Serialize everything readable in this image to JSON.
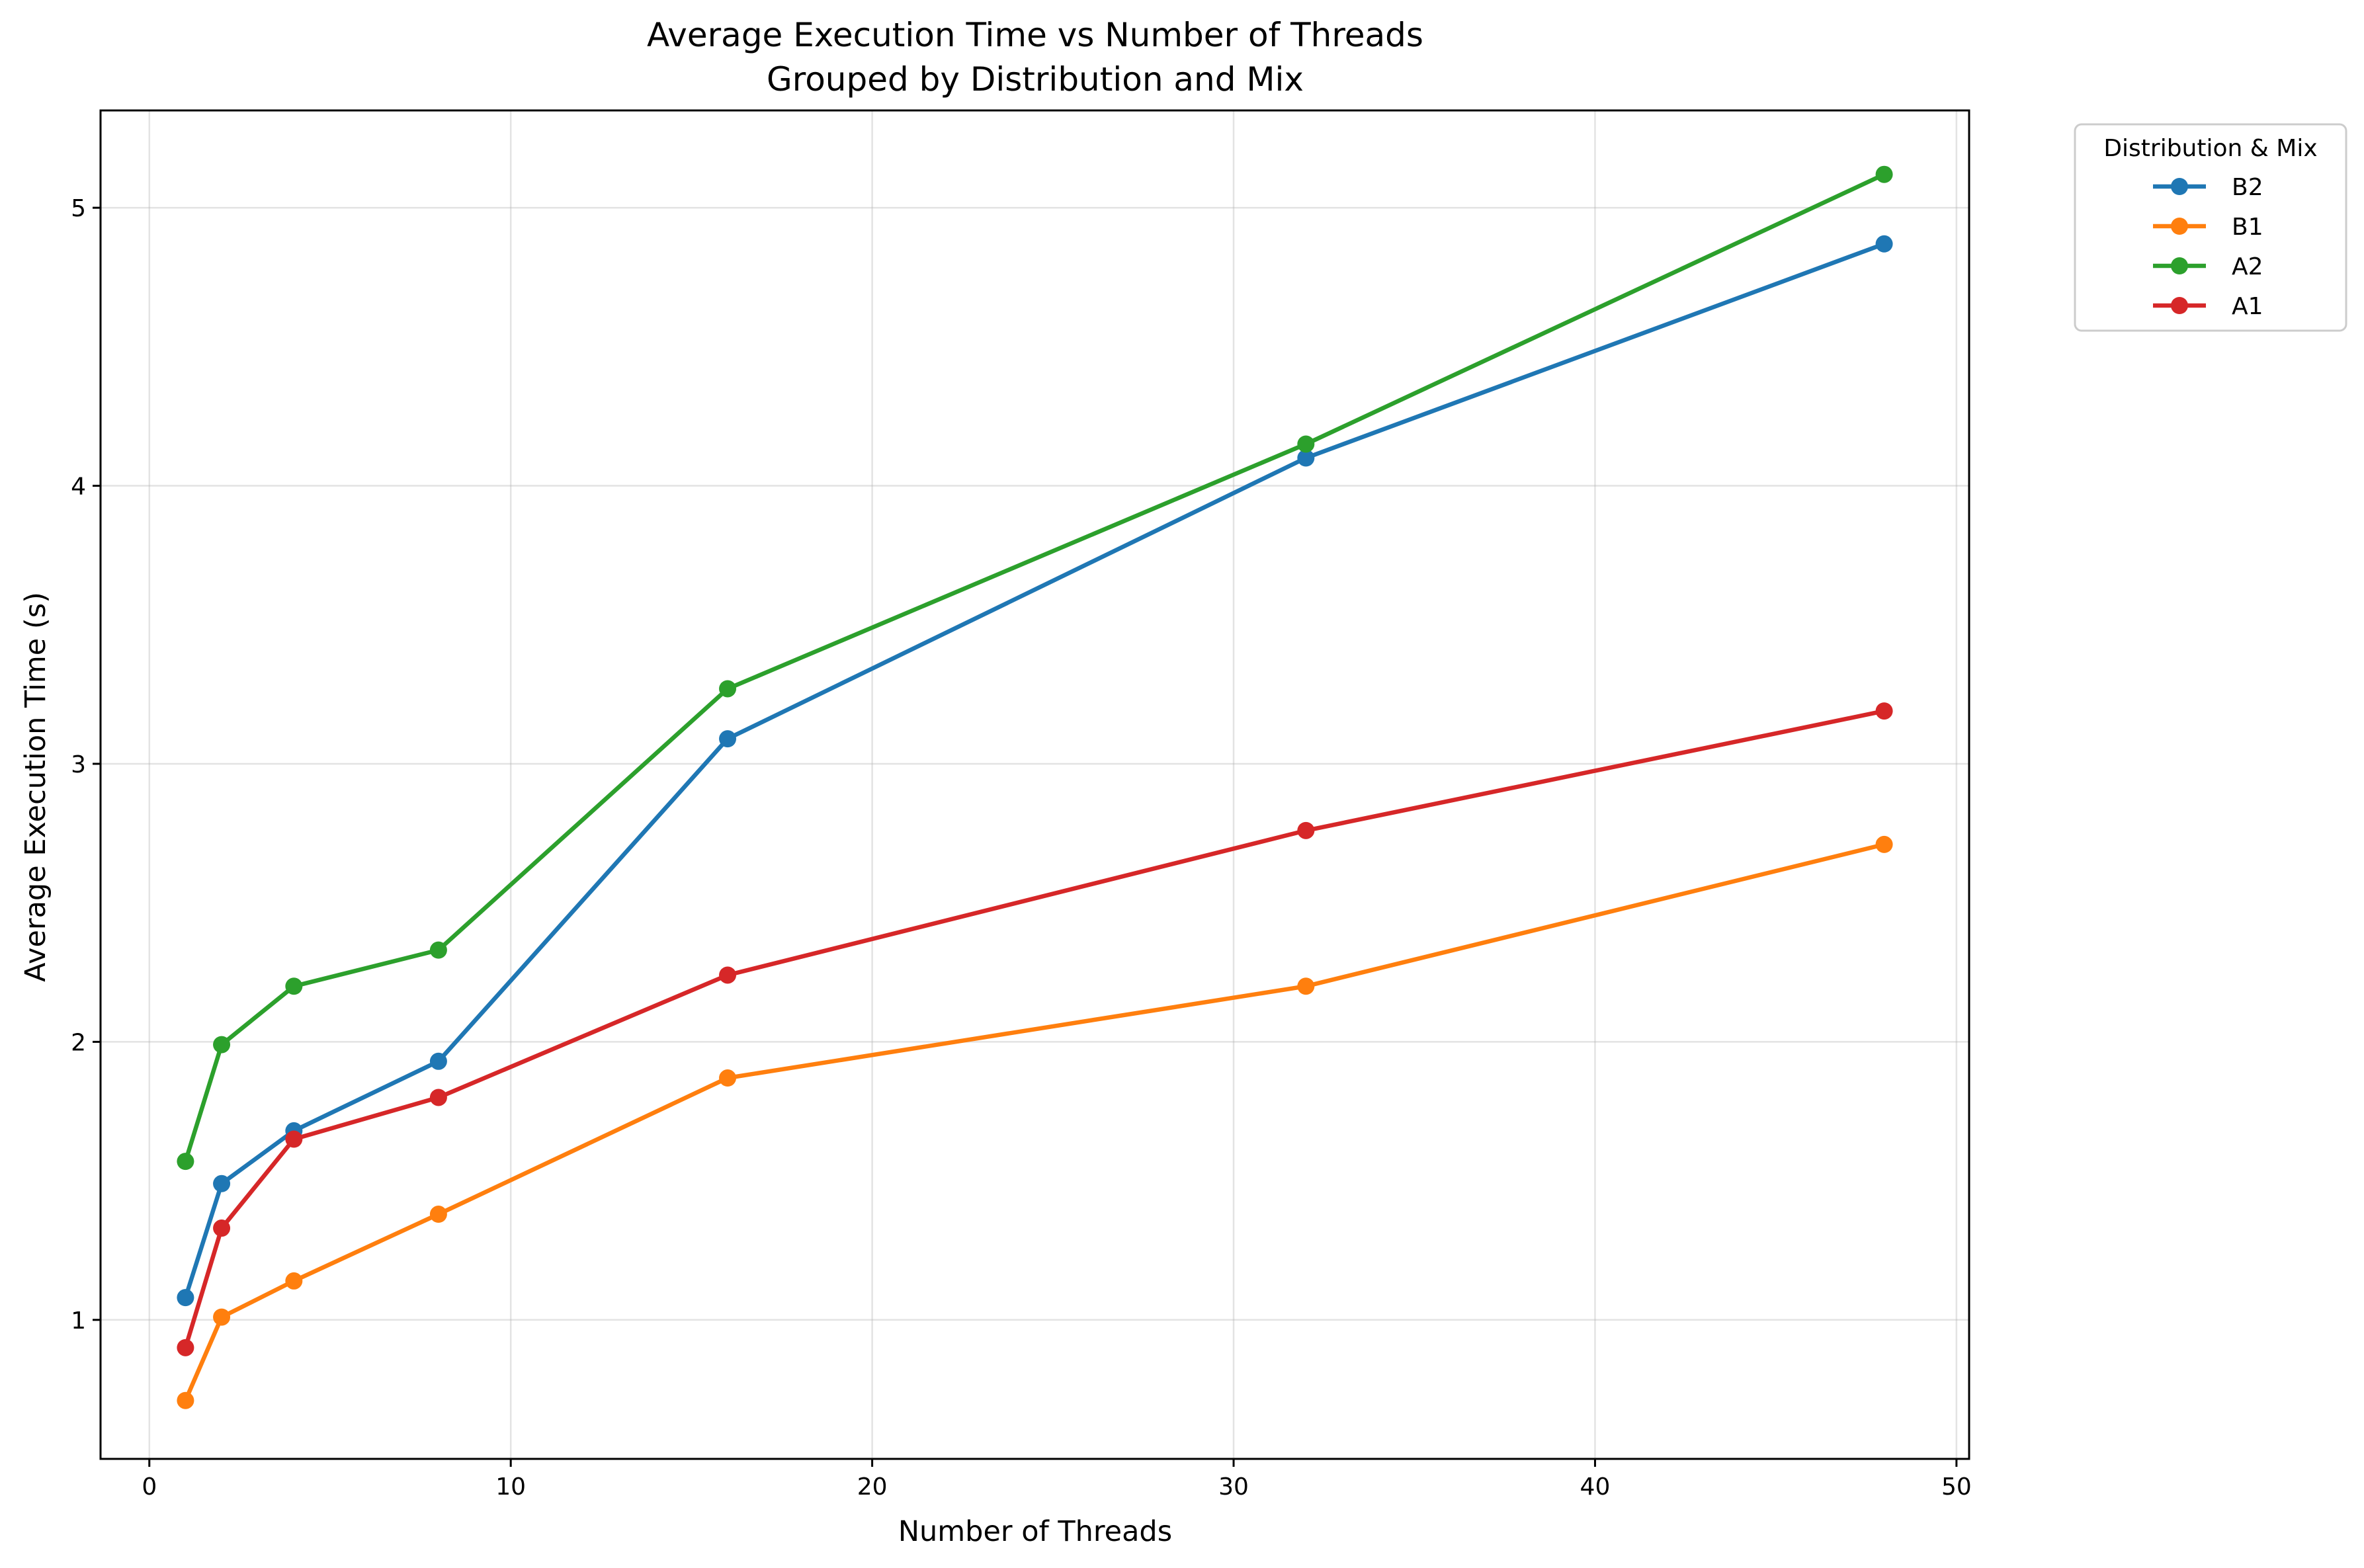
{
  "chart_data": {
    "type": "line",
    "title": [
      "Average Execution Time vs Number of Threads",
      "Grouped by Distribution and Mix"
    ],
    "xlabel": "Number of Threads",
    "ylabel": "Average Execution Time (s)",
    "xlim": [
      -1.35,
      50.35
    ],
    "ylim": [
      0.5,
      5.35
    ],
    "xticks": [
      0,
      10,
      20,
      30,
      40,
      50
    ],
    "yticks": [
      1,
      2,
      3,
      4,
      5
    ],
    "grid": true,
    "legend": {
      "title": "Distribution & Mix",
      "placement": "outside-top-right"
    },
    "series": [
      {
        "name": "B2",
        "color": "#1f77b4",
        "x": [
          1,
          2,
          4,
          8,
          16,
          32,
          48
        ],
        "y": [
          1.08,
          1.49,
          1.68,
          1.93,
          3.09,
          4.1,
          4.87
        ]
      },
      {
        "name": "B1",
        "color": "#ff7f0e",
        "x": [
          1,
          2,
          4,
          8,
          16,
          32,
          48
        ],
        "y": [
          0.71,
          1.01,
          1.14,
          1.38,
          1.87,
          2.2,
          2.71
        ]
      },
      {
        "name": "A2",
        "color": "#2ca02c",
        "x": [
          1,
          2,
          4,
          8,
          16,
          32,
          48
        ],
        "y": [
          1.57,
          1.99,
          2.2,
          2.33,
          3.27,
          4.15,
          5.12
        ]
      },
      {
        "name": "A1",
        "color": "#d62728",
        "x": [
          1,
          2,
          4,
          8,
          16,
          32,
          48
        ],
        "y": [
          0.9,
          1.33,
          1.65,
          1.8,
          2.24,
          2.76,
          3.19
        ]
      }
    ]
  }
}
